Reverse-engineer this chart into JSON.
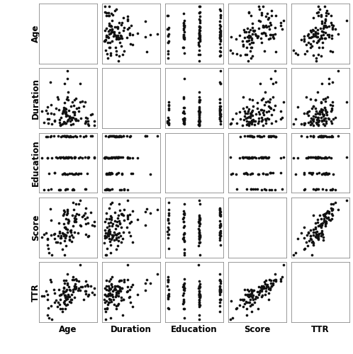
{
  "variables": [
    "Age",
    "Duration",
    "Education",
    "Score",
    "TTR"
  ],
  "n": 100,
  "seed": 7,
  "background_color": "#ffffff",
  "dot_color": "#111111",
  "dot_size": 7,
  "edu_levels": [
    6,
    9,
    12,
    16
  ],
  "edu_probs": [
    0.1,
    0.2,
    0.45,
    0.25
  ],
  "label_fontsize": 8.5,
  "label_fontweight": "bold"
}
